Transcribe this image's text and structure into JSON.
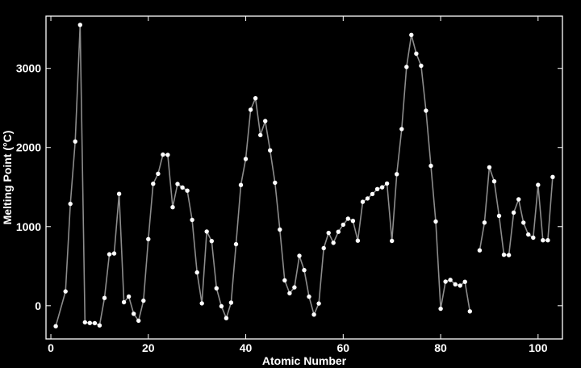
{
  "chart_data": {
    "type": "line",
    "xlabel": "Atomic Number",
    "ylabel": "Melting Point (°C)",
    "xlim": [
      -1,
      105
    ],
    "ylim": [
      -420,
      3660
    ],
    "xticks": [
      0,
      20,
      40,
      60,
      80,
      100
    ],
    "yticks": [
      0,
      1000,
      2000,
      3000
    ],
    "grid": false,
    "colors": {
      "background": "#000000",
      "frame": "#ffffff",
      "line": "#8c8c8c",
      "marker": "#ffffff",
      "text": "#ffffff"
    },
    "series": [
      {
        "segments": [
          [
            [
              1,
              -259
            ],
            [
              3,
              181
            ],
            [
              4,
              1287
            ],
            [
              5,
              2076
            ],
            [
              6,
              3550
            ],
            [
              7,
              -210
            ],
            [
              8,
              -218
            ],
            [
              9,
              -220
            ],
            [
              10,
              -249
            ],
            [
              11,
              98
            ],
            [
              12,
              650
            ],
            [
              13,
              660
            ],
            [
              14,
              1414
            ],
            [
              15,
              44
            ],
            [
              16,
              115
            ],
            [
              17,
              -102
            ],
            [
              18,
              -189
            ],
            [
              19,
              63
            ],
            [
              20,
              842
            ],
            [
              21,
              1541
            ],
            [
              22,
              1668
            ],
            [
              23,
              1910
            ],
            [
              24,
              1907
            ],
            [
              25,
              1246
            ],
            [
              26,
              1538
            ],
            [
              27,
              1495
            ],
            [
              28,
              1455
            ],
            [
              29,
              1085
            ],
            [
              30,
              420
            ],
            [
              31,
              30
            ],
            [
              32,
              938
            ],
            [
              33,
              817
            ],
            [
              34,
              221
            ],
            [
              35,
              -7
            ],
            [
              36,
              -157
            ],
            [
              37,
              39
            ],
            [
              38,
              777
            ],
            [
              39,
              1526
            ],
            [
              40,
              1855
            ],
            [
              41,
              2477
            ],
            [
              42,
              2623
            ],
            [
              43,
              2157
            ],
            [
              44,
              2334
            ],
            [
              45,
              1964
            ],
            [
              46,
              1555
            ],
            [
              47,
              962
            ],
            [
              48,
              321
            ],
            [
              49,
              157
            ],
            [
              50,
              232
            ],
            [
              51,
              631
            ],
            [
              52,
              450
            ],
            [
              53,
              114
            ],
            [
              54,
              -112
            ],
            [
              55,
              28
            ],
            [
              56,
              727
            ],
            [
              57,
              920
            ],
            [
              58,
              795
            ],
            [
              59,
              935
            ],
            [
              60,
              1024
            ],
            [
              61,
              1100
            ],
            [
              62,
              1072
            ],
            [
              63,
              822
            ],
            [
              64,
              1313
            ],
            [
              65,
              1356
            ],
            [
              66,
              1412
            ],
            [
              67,
              1474
            ],
            [
              68,
              1497
            ],
            [
              69,
              1545
            ],
            [
              70,
              819
            ],
            [
              71,
              1663
            ],
            [
              72,
              2233
            ],
            [
              73,
              3017
            ],
            [
              74,
              3422
            ],
            [
              75,
              3186
            ],
            [
              76,
              3033
            ],
            [
              77,
              2466
            ],
            [
              78,
              1768
            ],
            [
              79,
              1064
            ],
            [
              80,
              -39
            ],
            [
              81,
              304
            ],
            [
              82,
              327
            ],
            [
              83,
              271
            ],
            [
              84,
              254
            ],
            [
              85,
              302
            ],
            [
              86,
              -71
            ]
          ],
          [
            [
              88,
              700
            ],
            [
              89,
              1051
            ],
            [
              90,
              1750
            ],
            [
              91,
              1572
            ],
            [
              92,
              1135
            ],
            [
              93,
              644
            ],
            [
              94,
              640
            ],
            [
              95,
              1176
            ],
            [
              96,
              1345
            ],
            [
              97,
              1050
            ],
            [
              98,
              900
            ],
            [
              99,
              860
            ],
            [
              100,
              1527
            ],
            [
              101,
              827
            ],
            [
              102,
              827
            ],
            [
              103,
              1627
            ]
          ]
        ]
      }
    ]
  }
}
